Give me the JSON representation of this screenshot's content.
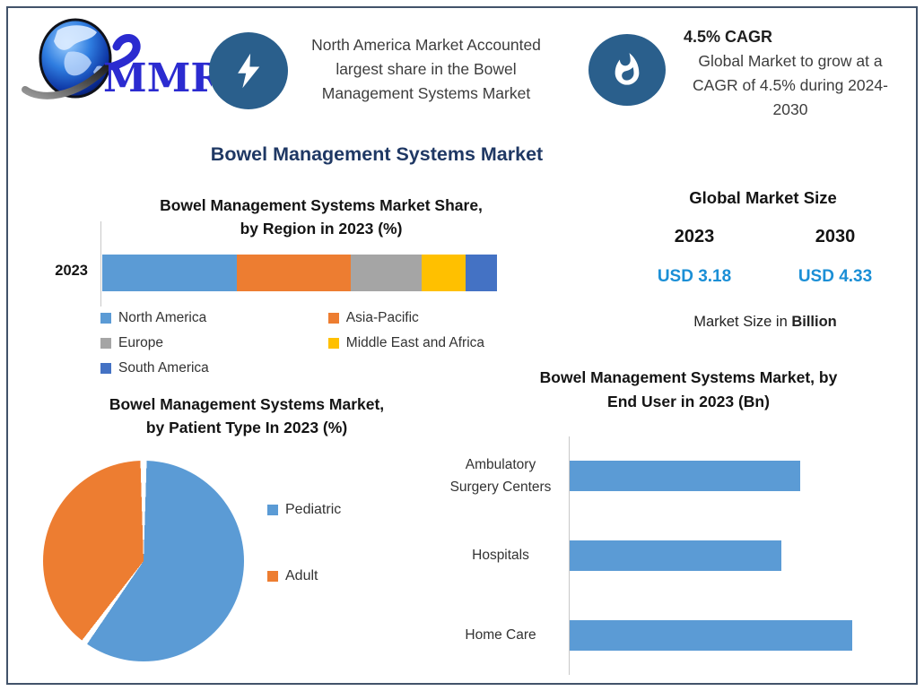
{
  "colors": {
    "frame_border": "#42536a",
    "navy_title": "#1f3864",
    "badge_blue": "#2a5f8c",
    "value_blue": "#1b8fd6",
    "axis_gray": "#c8c8c8"
  },
  "header": {
    "logo_text": "MMR",
    "highlight_na": {
      "icon": "lightning-icon",
      "text": "North America Market Accounted largest share in the Bowel Management Systems Market",
      "lines": [
        "North America Market Accounted",
        "largest share in the Bowel",
        "Management Systems Market"
      ]
    },
    "cagr": {
      "icon": "flame-icon",
      "headline": "4.5% CAGR",
      "text": "Global Market to grow at a CAGR of 4.5% during 2024-2030",
      "lines": [
        "Global Market to grow at a",
        "CAGR of 4.5% during 2024-",
        "2030"
      ]
    }
  },
  "main_title": "Bowel Management Systems Market",
  "market_size": {
    "title": "Global Market Size",
    "year_left": "2023",
    "year_right": "2030",
    "value_left": "USD 3.18",
    "value_right": "USD 4.33",
    "note_regular": "Market Size in ",
    "note_bold": "Billion"
  },
  "chart_data": [
    {
      "type": "bar",
      "variant": "stacked-horizontal",
      "title": "Bowel Management Systems Market Share, by Region in 2023 (%)",
      "title_lines": [
        "Bowel Management Systems Market Share,",
        "by Region in 2023 (%)"
      ],
      "categories": [
        "2023"
      ],
      "series": [
        {
          "name": "North America",
          "values": [
            34
          ],
          "color": "#5b9bd5"
        },
        {
          "name": "Asia-Pacific",
          "values": [
            29
          ],
          "color": "#ed7d31"
        },
        {
          "name": "Europe",
          "values": [
            18
          ],
          "color": "#a5a5a5"
        },
        {
          "name": "Middle East and Africa",
          "values": [
            11
          ],
          "color": "#ffc000"
        },
        {
          "name": "South America",
          "values": [
            8
          ],
          "color": "#4472c4"
        }
      ],
      "xlim": [
        0,
        100
      ],
      "unit": "%",
      "legend_position": "bottom"
    },
    {
      "type": "pie",
      "title": "Bowel Management Systems Market, by Patient Type In 2023 (%)",
      "title_lines": [
        "Bowel Management Systems Market,",
        "by Patient Type In 2023 (%)"
      ],
      "slices": [
        {
          "label": "Pediatric",
          "value": 60,
          "color": "#5b9bd5"
        },
        {
          "label": "Adult",
          "value": 40,
          "color": "#ed7d31"
        }
      ],
      "start_angle_deg": 0,
      "direction": "clockwise",
      "legend_position": "right"
    },
    {
      "type": "bar",
      "variant": "horizontal",
      "title": "Bowel Management Systems Market, by End User in 2023 (Bn)",
      "title_lines": [
        "Bowel Management Systems Market, by",
        "End User in 2023 (Bn)"
      ],
      "categories": [
        "Ambulatory Surgery Centers",
        "Hospitals",
        "Home Care"
      ],
      "values": [
        1.01,
        0.93,
        1.24
      ],
      "xlim": [
        0,
        1.4
      ],
      "unit": "Bn",
      "bar_color": "#5b9bd5",
      "grid": false
    }
  ]
}
